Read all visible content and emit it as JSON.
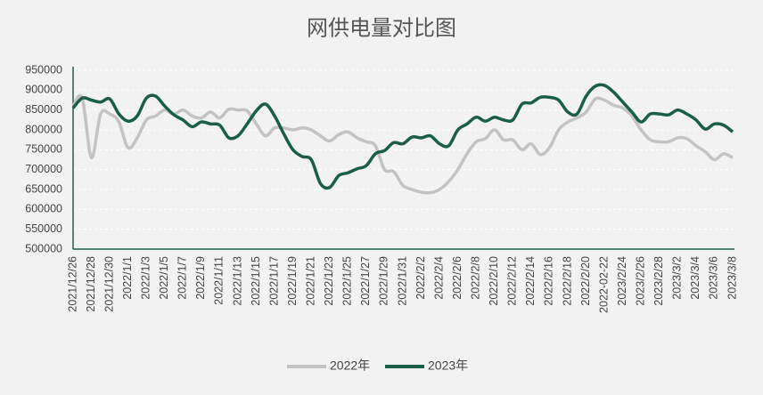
{
  "chart_data": {
    "type": "line",
    "title": "网供电量对比图",
    "categories": [
      "2021/12/26",
      null,
      "2021/12/28",
      null,
      "2021/12/30",
      null,
      "2022/1/1",
      null,
      "2022/1/3",
      null,
      "2022/1/5",
      null,
      "2022/1/7",
      null,
      "2022/1/9",
      null,
      "2022/1/11",
      null,
      "2022/1/13",
      null,
      "2022/1/15",
      null,
      "2022/1/17",
      null,
      "2022/1/19",
      null,
      "2022/1/21",
      null,
      "2022/1/23",
      null,
      "2022/1/25",
      null,
      "2022/1/27",
      null,
      "2022/1/29",
      null,
      "2022/1/31",
      null,
      "2022/2/2",
      null,
      "2022/2/4",
      null,
      "2022/2/6",
      null,
      "2022/2/8",
      null,
      "2022/2/10",
      null,
      "2022/2/12",
      null,
      "2022/2/14",
      null,
      "2022/2/16",
      null,
      "2022/2/18",
      null,
      "2022/2/20",
      null,
      "2022-02-22",
      null,
      "2023/2/24",
      null,
      "2023/2/26",
      null,
      "2023/2/28",
      null,
      "2023/3/2",
      null,
      "2023/3/4",
      null,
      "2023/3/6",
      null,
      "2023/3/8"
    ],
    "series": [
      {
        "name": "2022年",
        "color": "#c3c3c3",
        "values": [
          860000,
          880000,
          730000,
          840000,
          840000,
          820000,
          755000,
          780000,
          825000,
          835000,
          850000,
          840000,
          850000,
          835000,
          830000,
          845000,
          830000,
          852000,
          850000,
          848000,
          815000,
          785000,
          805000,
          805000,
          800000,
          805000,
          800000,
          785000,
          772000,
          788000,
          795000,
          780000,
          770000,
          760000,
          700000,
          695000,
          660000,
          650000,
          643000,
          642000,
          650000,
          670000,
          700000,
          740000,
          770000,
          778000,
          800000,
          775000,
          775000,
          750000,
          765000,
          738000,
          755000,
          800000,
          820000,
          830000,
          845000,
          878000,
          875000,
          862000,
          855000,
          835000,
          800000,
          775000,
          770000,
          770000,
          780000,
          778000,
          760000,
          745000,
          725000,
          740000,
          730000
        ]
      },
      {
        "name": "2023年",
        "color": "#1a5e45",
        "values": [
          855000,
          880000,
          875000,
          870000,
          878000,
          840000,
          822000,
          835000,
          880000,
          885000,
          860000,
          838000,
          825000,
          808000,
          820000,
          815000,
          812000,
          780000,
          785000,
          815000,
          848000,
          865000,
          835000,
          790000,
          750000,
          733000,
          725000,
          665000,
          655000,
          685000,
          692000,
          702000,
          710000,
          740000,
          748000,
          768000,
          765000,
          782000,
          780000,
          785000,
          765000,
          760000,
          800000,
          815000,
          832000,
          822000,
          832000,
          825000,
          825000,
          865000,
          868000,
          882000,
          882000,
          875000,
          845000,
          840000,
          885000,
          910000,
          912000,
          895000,
          870000,
          845000,
          820000,
          840000,
          840000,
          838000,
          850000,
          840000,
          825000,
          802000,
          815000,
          812000,
          795000
        ]
      }
    ],
    "ylim": [
      500000,
      950000
    ],
    "yticks": [
      500000,
      550000,
      600000,
      650000,
      700000,
      750000,
      800000,
      850000,
      900000,
      950000
    ],
    "grid": true,
    "legend": "bottom"
  }
}
